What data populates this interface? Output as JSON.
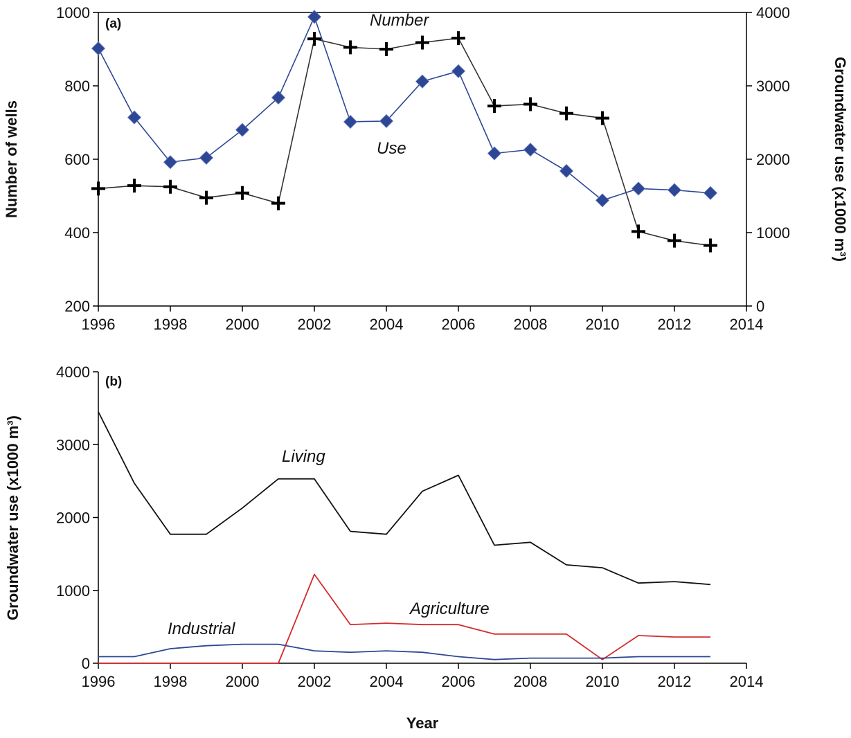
{
  "chart_data": [
    {
      "panel_label": "(a)",
      "type": "line",
      "x": [
        1996,
        1997,
        1998,
        1999,
        2000,
        2001,
        2002,
        2003,
        2004,
        2005,
        2006,
        2007,
        2008,
        2009,
        2010,
        2011,
        2012,
        2013
      ],
      "xlim": [
        1996,
        2014
      ],
      "xticks": [
        "1996",
        "1998",
        "2000",
        "2002",
        "2004",
        "2006",
        "2008",
        "2010",
        "2012",
        "2014"
      ],
      "ylabel": "Number of wells",
      "ylim": [
        200,
        1000
      ],
      "yticks": [
        "200",
        "400",
        "600",
        "800",
        "1000"
      ],
      "y2label": "Groundwater use (x1000 m³)",
      "y2lim": [
        0,
        4000
      ],
      "y2ticks": [
        "0",
        "1000",
        "2000",
        "3000",
        "4000"
      ],
      "series": [
        {
          "name": "Number",
          "axis": "left",
          "color": "#333333",
          "marker": "plus",
          "values": [
            520,
            528,
            525,
            495,
            508,
            480,
            928,
            905,
            900,
            918,
            930,
            745,
            750,
            725,
            712,
            403,
            378,
            365
          ]
        },
        {
          "name": "Use",
          "axis": "right",
          "color": "#2e4795",
          "marker": "diamond",
          "values": [
            3510,
            2570,
            1960,
            2020,
            2400,
            2840,
            3940,
            2510,
            2520,
            3060,
            3200,
            2080,
            2130,
            1840,
            1440,
            1600,
            1580,
            1540
          ]
        }
      ]
    },
    {
      "panel_label": "(b)",
      "type": "line",
      "x": [
        1996,
        1997,
        1998,
        1999,
        2000,
        2001,
        2002,
        2003,
        2004,
        2005,
        2006,
        2007,
        2008,
        2009,
        2010,
        2011,
        2012,
        2013
      ],
      "xlim": [
        1996,
        2014
      ],
      "xticks": [
        "1996",
        "1998",
        "2000",
        "2002",
        "2004",
        "2006",
        "2008",
        "2010",
        "2012",
        "2014"
      ],
      "xlabel": "Year",
      "ylabel": "Groundwater use (x1000 m³)",
      "ylim": [
        0,
        4000
      ],
      "yticks": [
        "0",
        "1000",
        "2000",
        "3000",
        "4000"
      ],
      "series": [
        {
          "name": "Living",
          "color": "#111111",
          "values": [
            3450,
            2470,
            1770,
            1770,
            2130,
            2530,
            2530,
            1810,
            1770,
            2360,
            2580,
            1620,
            1660,
            1350,
            1310,
            1100,
            1120,
            1080
          ]
        },
        {
          "name": "Agriculture",
          "color": "#d42a2a",
          "values": [
            0,
            0,
            0,
            0,
            0,
            0,
            1220,
            530,
            550,
            530,
            530,
            400,
            400,
            400,
            50,
            380,
            360,
            360
          ]
        },
        {
          "name": "Industrial",
          "color": "#2e4795",
          "values": [
            90,
            90,
            200,
            240,
            260,
            260,
            170,
            150,
            170,
            150,
            90,
            50,
            70,
            70,
            70,
            90,
            90,
            90
          ]
        }
      ]
    }
  ]
}
